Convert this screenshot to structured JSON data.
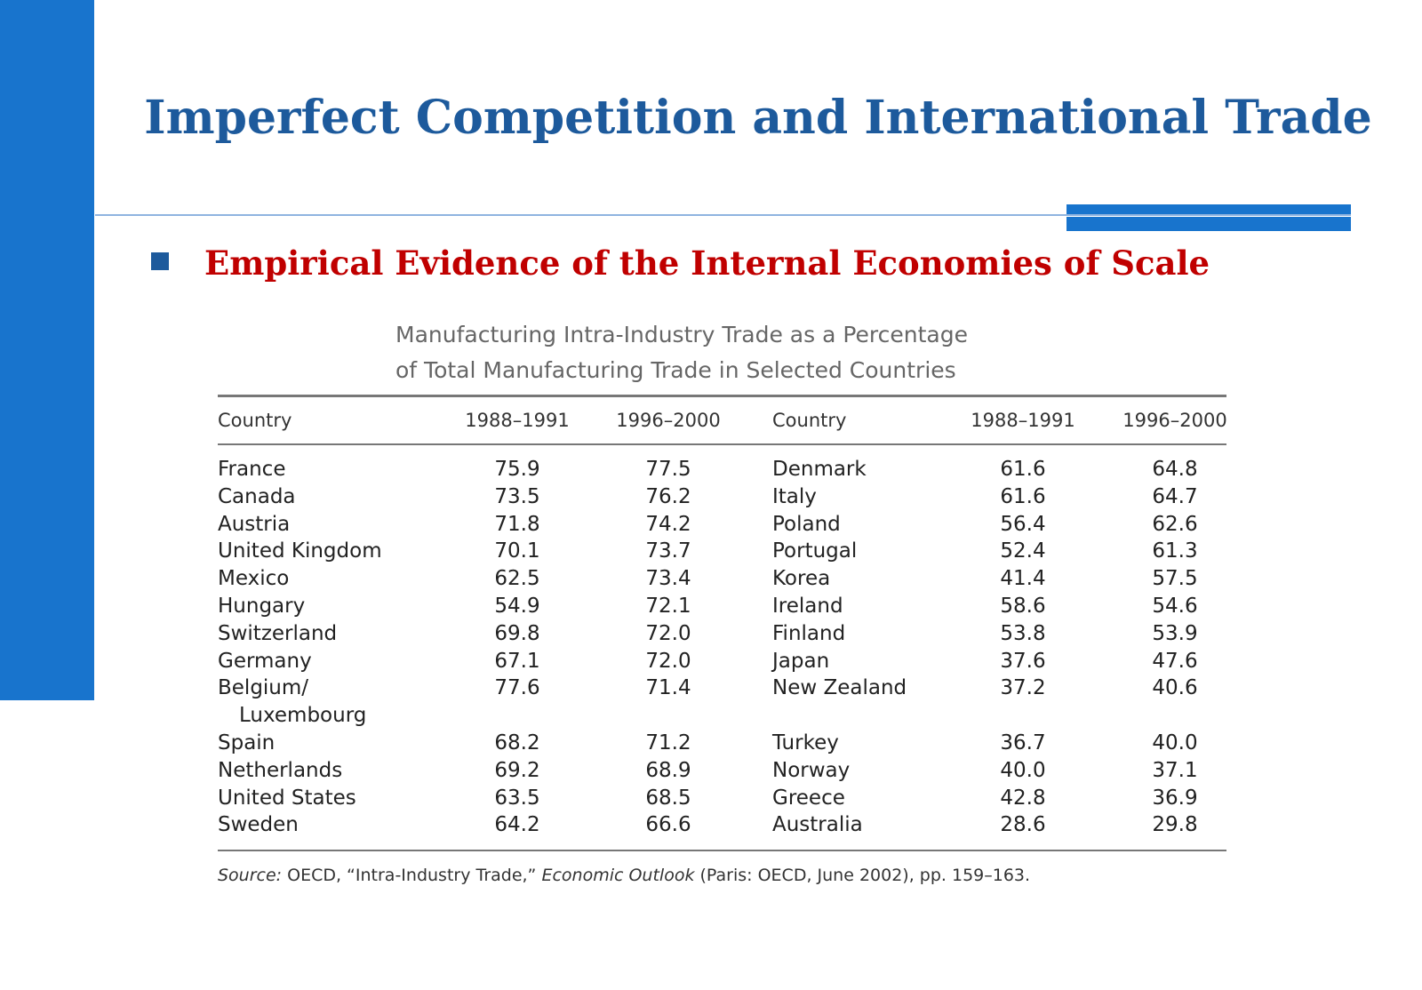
{
  "slide": {
    "title": "Imperfect Competition and International Trade",
    "bullet": "Empirical Evidence of the Internal Economies of Scale"
  },
  "table": {
    "caption": [
      "Manufacturing Intra-Industry Trade as a Percentage",
      "of Total Manufacturing Trade in Selected Countries"
    ],
    "header": [
      "Country",
      "1988–1991",
      "1996–2000",
      "Country",
      "1988–1991",
      "1996–2000"
    ],
    "rows": [
      [
        "France",
        "75.9",
        "77.5",
        "Denmark",
        "61.6",
        "64.8"
      ],
      [
        "Canada",
        "73.5",
        "76.2",
        "Italy",
        "61.6",
        "64.7"
      ],
      [
        "Austria",
        "71.8",
        "74.2",
        "Poland",
        "56.4",
        "62.6"
      ],
      [
        "United Kingdom",
        "70.1",
        "73.7",
        "Portugal",
        "52.4",
        "61.3"
      ],
      [
        "Mexico",
        "62.5",
        "73.4",
        "Korea",
        "41.4",
        "57.5"
      ],
      [
        "Hungary",
        "54.9",
        "72.1",
        "Ireland",
        "58.6",
        "54.6"
      ],
      [
        "Switzerland",
        "69.8",
        "72.0",
        "Finland",
        "53.8",
        "53.9"
      ],
      [
        "Germany",
        "67.1",
        "72.0",
        "Japan",
        "37.6",
        "47.6"
      ],
      [
        [
          "Belgium/",
          "Luxembourg"
        ],
        "77.6",
        "71.4",
        "New Zealand",
        "37.2",
        "40.6"
      ],
      [
        "Spain",
        "68.2",
        "71.2",
        "Turkey",
        "36.7",
        "40.0"
      ],
      [
        "Netherlands",
        "69.2",
        "68.9",
        "Norway",
        "40.0",
        "37.1"
      ],
      [
        "United States",
        "63.5",
        "68.5",
        "Greece",
        "42.8",
        "36.9"
      ],
      [
        "Sweden",
        "64.2",
        "66.6",
        "Australia",
        "28.6",
        "29.8"
      ]
    ],
    "source": [
      "Source:",
      "OECD, “Intra-Industry Trade,”",
      "Economic Outlook",
      "(Paris: OECD, June 2002), pp. 159–163."
    ]
  }
}
